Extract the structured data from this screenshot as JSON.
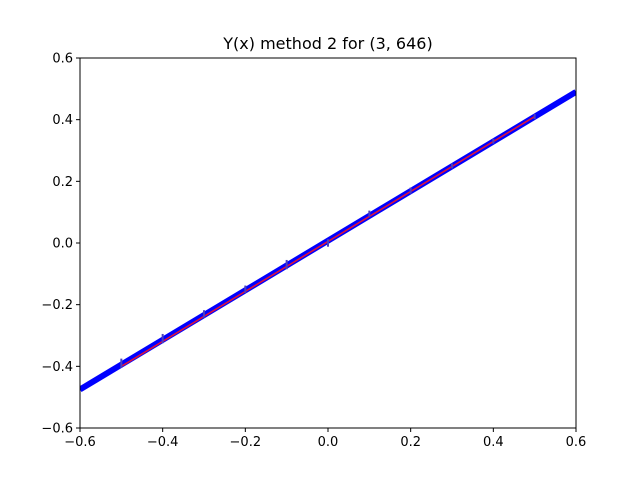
{
  "chart_data": {
    "type": "line",
    "title": "Y(x) method 2 for (3, 646)",
    "xlabel": "",
    "ylabel": "",
    "xlim": [
      -0.6,
      0.6
    ],
    "ylim": [
      -0.6,
      0.6
    ],
    "xticks": [
      -0.6,
      -0.4,
      -0.2,
      0.0,
      0.2,
      0.4,
      0.6
    ],
    "yticks": [
      -0.6,
      -0.4,
      -0.2,
      0.0,
      0.2,
      0.4,
      0.6
    ],
    "xtick_labels": [
      "−0.6",
      "−0.4",
      "−0.2",
      "0.0",
      "0.2",
      "0.4",
      "0.6"
    ],
    "ytick_labels": [
      "−0.6",
      "−0.4",
      "−0.2",
      "0.0",
      "0.2",
      "0.4",
      "0.6"
    ],
    "grid": false,
    "series": [
      {
        "style": "line",
        "color": "#0000ff",
        "x": [
          -0.6,
          0.6
        ],
        "y": [
          -0.475,
          0.49
        ]
      },
      {
        "style": "line",
        "color": "#dc143c",
        "x": [
          -0.5,
          0.5
        ],
        "y": [
          -0.4,
          0.41
        ]
      },
      {
        "style": "errorbar",
        "color": "#4a3fbf",
        "x": [
          -0.5,
          -0.4,
          -0.3,
          -0.2,
          -0.1,
          0.0,
          0.1,
          0.2,
          0.3,
          0.4,
          0.5
        ],
        "y": [
          -0.39,
          -0.31,
          -0.23,
          -0.15,
          -0.07,
          0.0,
          0.095,
          0.17,
          0.25,
          0.33,
          0.41
        ],
        "err": [
          0.015,
          0.015,
          0.012,
          0.012,
          0.015,
          0.012,
          0.01,
          0.01,
          0.008,
          0.008,
          0.008
        ]
      }
    ]
  }
}
